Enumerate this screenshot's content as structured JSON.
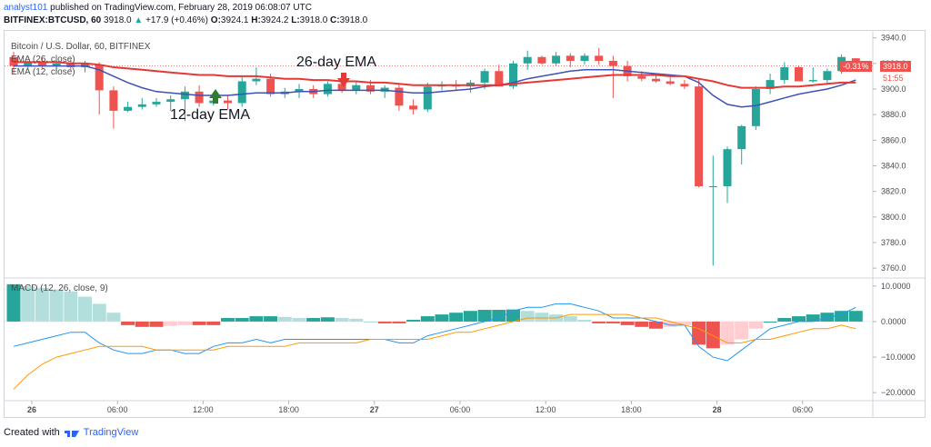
{
  "header": {
    "author": "analyst101",
    "published": "published on TradingView.com, February 28, 2019 06:08:07 UTC",
    "symbol": "BITFINEX:BTCUSD, 60",
    "last": "3918.0",
    "change": "+17.9 (+0.46%)",
    "o_label": "O:",
    "o_val": "3924.1",
    "h_label": "H:",
    "h_val": "3924.2",
    "l_label": "L:",
    "l_val": "3918.0",
    "c_label": "C:",
    "c_val": "3918.0"
  },
  "legend": {
    "title": "Bitcoin / U.S. Dollar, 60, BITFINEX",
    "ema26": "EMA (26, close)",
    "ema12": "EMA (12, close)",
    "macd": "MACD (12, 26, close, 9)"
  },
  "annotations": {
    "ema26": "26-day EMA",
    "ema12": "12-day EMA"
  },
  "price_tags": {
    "pct": "-0.31%",
    "price": "3918.0",
    "countdown": "51:55"
  },
  "footer": {
    "created": "Created with",
    "brand": "TradingView"
  },
  "colors": {
    "up": "#26a69a",
    "down": "#ef5350",
    "ema26": "#e53935",
    "ema12": "#3f51b5",
    "macd_line": "#2196f3",
    "signal_line": "#ff9800",
    "hist_up_strong": "#26a69a",
    "hist_up_weak": "#b2dfdb",
    "hist_down_strong": "#ef5350",
    "hist_down_weak": "#ffcdd2"
  },
  "chart_data": {
    "type": "candlestick",
    "y_ticks": [
      "3940.0",
      "3920.0",
      "3900.0",
      "3880.0",
      "3860.0",
      "3840.0",
      "3820.0",
      "3800.0",
      "3780.0",
      "3760.0"
    ],
    "y_range": [
      3753,
      3944
    ],
    "x_ticks": [
      "26",
      "06:00",
      "12:00",
      "18:00",
      "27",
      "06:00",
      "12:00",
      "18:00",
      "28",
      "06:00"
    ],
    "x_tick_bar_index": [
      0,
      6,
      12,
      18,
      24,
      30,
      36,
      42,
      48,
      54
    ],
    "candles": [
      {
        "o": 3925,
        "h": 3929,
        "l": 3912,
        "c": 3918
      },
      {
        "o": 3918,
        "h": 3922,
        "l": 3915,
        "c": 3921
      },
      {
        "o": 3921,
        "h": 3925,
        "l": 3916,
        "c": 3918
      },
      {
        "o": 3918,
        "h": 3922,
        "l": 3914,
        "c": 3920
      },
      {
        "o": 3920,
        "h": 3923,
        "l": 3915,
        "c": 3917
      },
      {
        "o": 3917,
        "h": 3922,
        "l": 3913,
        "c": 3920
      },
      {
        "o": 3919,
        "h": 3921,
        "l": 3880,
        "c": 3899
      },
      {
        "o": 3899,
        "h": 3902,
        "l": 3869,
        "c": 3883
      },
      {
        "o": 3883,
        "h": 3890,
        "l": 3882,
        "c": 3886
      },
      {
        "o": 3886,
        "h": 3893,
        "l": 3884,
        "c": 3888
      },
      {
        "o": 3888,
        "h": 3893,
        "l": 3886,
        "c": 3890
      },
      {
        "o": 3890,
        "h": 3895,
        "l": 3883,
        "c": 3892
      },
      {
        "o": 3892,
        "h": 3902,
        "l": 3875,
        "c": 3898
      },
      {
        "o": 3898,
        "h": 3903,
        "l": 3886,
        "c": 3889
      },
      {
        "o": 3889,
        "h": 3896,
        "l": 3887,
        "c": 3891
      },
      {
        "o": 3891,
        "h": 3895,
        "l": 3884,
        "c": 3889
      },
      {
        "o": 3889,
        "h": 3910,
        "l": 3886,
        "c": 3906
      },
      {
        "o": 3906,
        "h": 3917,
        "l": 3903,
        "c": 3908
      },
      {
        "o": 3908,
        "h": 3912,
        "l": 3894,
        "c": 3896
      },
      {
        "o": 3896,
        "h": 3901,
        "l": 3893,
        "c": 3898
      },
      {
        "o": 3898,
        "h": 3904,
        "l": 3893,
        "c": 3900
      },
      {
        "o": 3900,
        "h": 3903,
        "l": 3893,
        "c": 3896
      },
      {
        "o": 3896,
        "h": 3906,
        "l": 3894,
        "c": 3904
      },
      {
        "o": 3904,
        "h": 3908,
        "l": 3897,
        "c": 3899
      },
      {
        "o": 3899,
        "h": 3906,
        "l": 3896,
        "c": 3903
      },
      {
        "o": 3903,
        "h": 3907,
        "l": 3896,
        "c": 3898
      },
      {
        "o": 3898,
        "h": 3903,
        "l": 3893,
        "c": 3901
      },
      {
        "o": 3901,
        "h": 3904,
        "l": 3883,
        "c": 3887
      },
      {
        "o": 3887,
        "h": 3892,
        "l": 3880,
        "c": 3884
      },
      {
        "o": 3884,
        "h": 3905,
        "l": 3882,
        "c": 3902
      },
      {
        "o": 3902,
        "h": 3906,
        "l": 3899,
        "c": 3903
      },
      {
        "o": 3903,
        "h": 3907,
        "l": 3899,
        "c": 3902
      },
      {
        "o": 3902,
        "h": 3907,
        "l": 3897,
        "c": 3905
      },
      {
        "o": 3905,
        "h": 3916,
        "l": 3900,
        "c": 3914
      },
      {
        "o": 3914,
        "h": 3919,
        "l": 3903,
        "c": 3902
      },
      {
        "o": 3902,
        "h": 3922,
        "l": 3900,
        "c": 3920
      },
      {
        "o": 3920,
        "h": 3930,
        "l": 3915,
        "c": 3925
      },
      {
        "o": 3925,
        "h": 3926,
        "l": 3919,
        "c": 3920
      },
      {
        "o": 3920,
        "h": 3929,
        "l": 3918,
        "c": 3926
      },
      {
        "o": 3926,
        "h": 3928,
        "l": 3917,
        "c": 3922
      },
      {
        "o": 3922,
        "h": 3928,
        "l": 3919,
        "c": 3926
      },
      {
        "o": 3926,
        "h": 3932,
        "l": 3919,
        "c": 3922
      },
      {
        "o": 3922,
        "h": 3926,
        "l": 3893,
        "c": 3918
      },
      {
        "o": 3918,
        "h": 3922,
        "l": 3906,
        "c": 3910
      },
      {
        "o": 3910,
        "h": 3914,
        "l": 3906,
        "c": 3908
      },
      {
        "o": 3908,
        "h": 3912,
        "l": 3905,
        "c": 3906
      },
      {
        "o": 3906,
        "h": 3909,
        "l": 3903,
        "c": 3904
      },
      {
        "o": 3904,
        "h": 3907,
        "l": 3900,
        "c": 3902
      },
      {
        "o": 3902,
        "h": 3908,
        "l": 3823,
        "c": 3824
      },
      {
        "o": 3824,
        "h": 3848,
        "l": 3762,
        "c": 3824
      },
      {
        "o": 3824,
        "h": 3855,
        "l": 3811,
        "c": 3853
      },
      {
        "o": 3853,
        "h": 3872,
        "l": 3841,
        "c": 3871
      },
      {
        "o": 3871,
        "h": 3902,
        "l": 3868,
        "c": 3900
      },
      {
        "o": 3900,
        "h": 3912,
        "l": 3896,
        "c": 3907
      },
      {
        "o": 3907,
        "h": 3921,
        "l": 3904,
        "c": 3917
      },
      {
        "o": 3917,
        "h": 3918,
        "l": 3906,
        "c": 3906
      },
      {
        "o": 3906,
        "h": 3917,
        "l": 3905,
        "c": 3907
      },
      {
        "o": 3907,
        "h": 3916,
        "l": 3904,
        "c": 3914
      },
      {
        "o": 3914,
        "h": 3927,
        "l": 3912,
        "c": 3925
      },
      {
        "o": 3924,
        "h": 3924,
        "l": 3918,
        "c": 3918
      }
    ],
    "ema26": [
      3921,
      3921,
      3921,
      3921,
      3920,
      3920,
      3919,
      3917,
      3916,
      3915,
      3914,
      3913,
      3912,
      3911,
      3911,
      3910,
      3910,
      3910,
      3909,
      3908,
      3908,
      3907,
      3907,
      3906,
      3906,
      3905,
      3905,
      3904,
      3903,
      3903,
      3903,
      3903,
      3903,
      3903,
      3903,
      3904,
      3905,
      3906,
      3907,
      3908,
      3909,
      3910,
      3911,
      3911,
      3911,
      3911,
      3910,
      3910,
      3908,
      3906,
      3903,
      3901,
      3901,
      3901,
      3902,
      3902,
      3903,
      3904,
      3905,
      3905
    ],
    "ema12": [
      3918,
      3918,
      3918,
      3918,
      3918,
      3918,
      3915,
      3910,
      3905,
      3901,
      3898,
      3897,
      3896,
      3895,
      3895,
      3895,
      3896,
      3897,
      3897,
      3897,
      3898,
      3898,
      3899,
      3899,
      3899,
      3899,
      3899,
      3898,
      3897,
      3897,
      3898,
      3899,
      3900,
      3902,
      3903,
      3905,
      3908,
      3910,
      3912,
      3914,
      3915,
      3915,
      3915,
      3914,
      3913,
      3912,
      3911,
      3910,
      3905,
      3895,
      3888,
      3886,
      3887,
      3890,
      3893,
      3896,
      3898,
      3900,
      3903,
      3907
    ],
    "macd_y_ticks": [
      "10.0000",
      "0.0000",
      "−10.0000",
      "−20.0000"
    ],
    "macd_y_range": [
      -22,
      12
    ],
    "macd_hist": [
      10.5,
      10,
      9.5,
      9,
      8.5,
      7,
      5,
      2.5,
      -1,
      -1.5,
      -1.5,
      -1.2,
      -1,
      -1,
      -1,
      1,
      1,
      1.5,
      1.5,
      1.3,
      1,
      1,
      1.2,
      1,
      0.8,
      0,
      -0.5,
      -0.5,
      0.5,
      1.5,
      2,
      2.5,
      3,
      3.3,
      3.3,
      3.4,
      3,
      2.5,
      2,
      1.5,
      0.5,
      -0.5,
      -0.5,
      -1,
      -1.5,
      -2,
      -1.5,
      -1,
      -6.5,
      -7.5,
      -6.5,
      -5,
      -2,
      0,
      1,
      1.5,
      2,
      2.5,
      3,
      3
    ],
    "macd_line": [
      -7,
      -6,
      -5,
      -4,
      -3,
      -3,
      -6,
      -8,
      -9,
      -9,
      -8,
      -8,
      -9,
      -9,
      -7,
      -6,
      -6,
      -5,
      -6,
      -5,
      -5,
      -5,
      -5,
      -5,
      -5,
      -5,
      -5,
      -6,
      -6,
      -4,
      -3,
      -2,
      -1,
      0,
      1,
      3,
      4,
      4,
      5,
      5,
      4,
      3,
      1,
      1,
      1,
      0,
      -1,
      -1,
      -7,
      -10,
      -11,
      -8,
      -5,
      -2,
      -1,
      0,
      0,
      1,
      2,
      4
    ],
    "signal_line": [
      -19,
      -15,
      -12,
      -10,
      -9,
      -8,
      -7,
      -7,
      -7,
      -7,
      -8,
      -8,
      -8,
      -8,
      -8,
      -7,
      -7,
      -7,
      -7,
      -7,
      -6,
      -6,
      -6,
      -6,
      -6,
      -5,
      -5,
      -5,
      -5,
      -5,
      -4,
      -3,
      -3,
      -2,
      -1,
      0,
      1,
      1,
      1,
      2,
      2,
      2,
      2,
      2,
      1,
      1,
      0,
      -1,
      -2,
      -4,
      -6,
      -6,
      -5,
      -5,
      -4,
      -3,
      -2,
      -2,
      -1,
      -2
    ]
  }
}
